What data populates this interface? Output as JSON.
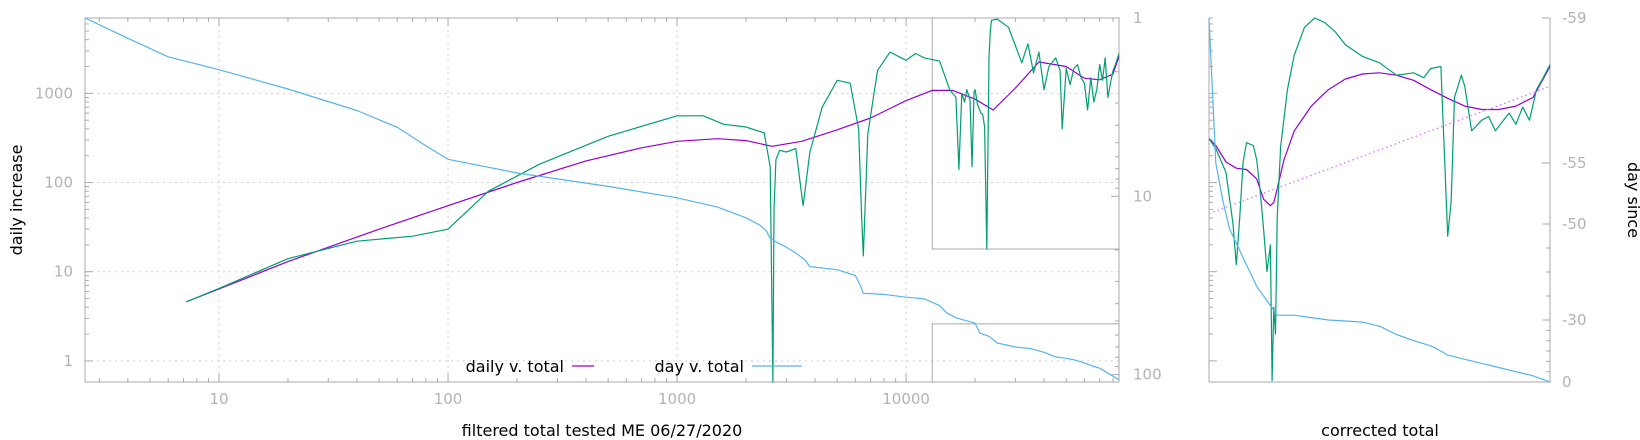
{
  "chart_data": [
    {
      "type": "line",
      "xlabel": "filtered total tested ME 06/27/2020",
      "ylabel": "daily increase",
      "y2label": "",
      "xscale": "log",
      "yscale": "log",
      "y2scale": "log-reversed",
      "xlim": [
        2.6,
        85000
      ],
      "ylim": [
        0.58,
        7000
      ],
      "y2lim": [
        1,
        110
      ],
      "x_ticks": [
        "10",
        "100",
        "1000",
        "10000"
      ],
      "y_ticks": [
        "1",
        "10",
        "100",
        "1000"
      ],
      "y2_ticks": [
        "1",
        "10",
        "100"
      ],
      "grid": true,
      "legend_position": "bottom-center",
      "colors": {
        "daily": "#9400d3",
        "raw": "#009e73",
        "day": "#56b4e9",
        "axis": "#aaaaaa",
        "text": "#b3b3b3"
      },
      "series": [
        {
          "name": "daily v. total",
          "axis": "y",
          "x": [
            7.2,
            10,
            20,
            50,
            100,
            200,
            400,
            700,
            1000,
            1500,
            2000,
            2600,
            3500,
            5000,
            7000,
            10000,
            13000,
            16000,
            20000,
            24000,
            30000,
            38000,
            50000,
            60000,
            70000,
            80000,
            85000
          ],
          "y": [
            4.6,
            6.4,
            13,
            30,
            55,
            100,
            175,
            245,
            290,
            310,
            295,
            255,
            290,
            390,
            530,
            830,
            1080,
            1080,
            860,
            650,
            1150,
            2250,
            2000,
            1480,
            1420,
            1650,
            2600
          ]
        },
        {
          "name": "",
          "axis": "y",
          "x": [
            7.2,
            10,
            20,
            40,
            70,
            100,
            150,
            250,
            500,
            1000,
            1300,
            1600,
            2000,
            2400,
            2550,
            2620,
            2650,
            2700,
            2800,
            3000,
            3300,
            3550,
            3800,
            4300,
            5000,
            5700,
            6200,
            6400,
            6500,
            6800,
            7500,
            8500,
            10000,
            11000,
            12000,
            14000,
            15500,
            16500,
            17000,
            17500,
            18000,
            18400,
            19000,
            19400,
            19800,
            20000,
            20500,
            21200,
            21600,
            22000,
            22500,
            23000,
            23300,
            23600,
            25000,
            28000,
            32000,
            34000,
            36000,
            38000,
            40000,
            42000,
            45000,
            47000,
            48000,
            50000,
            52000,
            54000,
            56000,
            58000,
            60000,
            62000,
            64000,
            66000,
            68000,
            70000,
            72000,
            74000,
            76000,
            78000,
            80000,
            82000,
            85000
          ],
          "y": [
            4.6,
            6.5,
            14,
            22,
            25,
            30,
            80,
            160,
            330,
            560,
            560,
            450,
            420,
            360,
            150,
            0.58,
            50,
            180,
            230,
            220,
            240,
            55,
            220,
            700,
            1400,
            1300,
            400,
            40,
            15,
            350,
            1800,
            2900,
            2350,
            2800,
            2500,
            2300,
            1100,
            900,
            140,
            1000,
            800,
            1100,
            850,
            150,
            1050,
            1100,
            750,
            600,
            580,
            420,
            18,
            2500,
            5000,
            6600,
            6800,
            5500,
            2200,
            3600,
            1700,
            2900,
            1100,
            2000,
            2500,
            1800,
            400,
            1900,
            1250,
            1900,
            2100,
            1500,
            1300,
            650,
            1500,
            800,
            1100,
            2100,
            1400,
            2500,
            900,
            1300,
            1800,
            2100,
            2800
          ]
        },
        {
          "name": "day v. total",
          "axis": "y2",
          "x": [
            2.6,
            4,
            6,
            10,
            20,
            40,
            60,
            80,
            100,
            200,
            500,
            1000,
            1500,
            2000,
            2300,
            2450,
            2550,
            2700,
            3000,
            3300,
            3600,
            3800,
            5000,
            6000,
            6300,
            6500,
            8000,
            10000,
            12000,
            14000,
            15000,
            16500,
            18000,
            20000,
            21000,
            23000,
            25000,
            30000,
            35000,
            40000,
            45000,
            50000,
            55000,
            60000,
            65000,
            70000,
            75000,
            80000,
            85000
          ],
          "y2": [
            1,
            1.3,
            1.65,
            1.95,
            2.5,
            3.3,
            4.1,
            5.2,
            6.2,
            7.4,
            8.8,
            10.2,
            11.5,
            13.2,
            14.5,
            15.6,
            17.2,
            18.0,
            19.3,
            20.8,
            22.6,
            24.8,
            25.8,
            27.8,
            31.5,
            35.0,
            35.5,
            36.8,
            37.6,
            41.0,
            45.0,
            48.0,
            49.5,
            51.5,
            58.5,
            61.0,
            66.5,
            70.0,
            71.5,
            75.0,
            79.5,
            81.0,
            83.0,
            86.0,
            89.5,
            92.0,
            97.0,
            102.0,
            107.0
          ]
        }
      ]
    },
    {
      "type": "line",
      "xlabel": "corrected total",
      "ylabel": "day since",
      "y2_ticks": [
        "-59",
        "-55",
        "-50",
        "-30",
        "0"
      ],
      "y2lim": [
        -59,
        0
      ],
      "grid": false,
      "colors": {
        "daily": "#9400d3",
        "raw": "#009e73",
        "day": "#56b4e9",
        "fit": "#d966ff"
      },
      "series": [
        {
          "name": "",
          "axis": "y",
          "x": [
            0.0,
            0.02,
            0.05,
            0.08,
            0.11,
            0.14,
            0.16,
            0.18,
            0.19,
            0.2,
            0.22,
            0.25,
            0.3,
            0.35,
            0.4,
            0.45,
            0.5,
            0.55,
            0.6,
            0.65,
            0.7,
            0.75,
            0.8,
            0.85,
            0.9,
            0.95,
            1.0
          ],
          "y": [
            310,
            260,
            170,
            145,
            140,
            110,
            65,
            55,
            60,
            85,
            180,
            380,
            720,
            1100,
            1450,
            1650,
            1700,
            1600,
            1400,
            1100,
            880,
            720,
            660,
            660,
            720,
            900,
            2000
          ]
        },
        {
          "name": "",
          "axis": "y",
          "x": [
            0.0,
            0.02,
            0.05,
            0.07,
            0.08,
            0.09,
            0.1,
            0.11,
            0.13,
            0.14,
            0.15,
            0.16,
            0.17,
            0.18,
            0.185,
            0.19,
            0.195,
            0.2,
            0.21,
            0.23,
            0.25,
            0.28,
            0.31,
            0.34,
            0.37,
            0.4,
            0.45,
            0.5,
            0.55,
            0.6,
            0.63,
            0.65,
            0.68,
            0.7,
            0.71,
            0.72,
            0.74,
            0.75,
            0.77,
            0.8,
            0.82,
            0.84,
            0.86,
            0.88,
            0.9,
            0.92,
            0.94,
            0.96,
            0.98,
            1.0
          ],
          "y": [
            310,
            240,
            130,
            35,
            12,
            40,
            170,
            280,
            260,
            180,
            80,
            30,
            10,
            20,
            0.6,
            4,
            2,
            40,
            250,
            1100,
            2700,
            5500,
            7000,
            6200,
            4900,
            3500,
            2600,
            2200,
            1600,
            1700,
            1500,
            1900,
            2000,
            25,
            60,
            900,
            1600,
            1200,
            380,
            500,
            550,
            380,
            480,
            600,
            450,
            700,
            500,
            1100,
            1500,
            2100
          ]
        },
        {
          "name": "",
          "axis": "y2",
          "x": [
            0.0,
            0.01,
            0.02,
            0.04,
            0.06,
            0.08,
            0.1,
            0.12,
            0.14,
            0.16,
            0.18,
            0.19,
            0.2,
            0.25,
            0.3,
            0.35,
            0.4,
            0.45,
            0.5,
            0.55,
            0.6,
            0.65,
            0.68,
            0.7,
            0.75,
            0.8,
            0.85,
            0.9,
            0.95,
            1.0
          ],
          "y2": [
            -59,
            -57,
            -55,
            -52,
            -49,
            -46,
            -43,
            -40,
            -37,
            -35,
            -33,
            -32,
            -31,
            -31,
            -30.5,
            -30,
            -29.5,
            -29,
            -27,
            -23,
            -20,
            -17.5,
            -15,
            -13,
            -11,
            -9,
            -7,
            -5,
            -3,
            0
          ]
        },
        {
          "name": "",
          "axis": "y",
          "style": "dotted",
          "x": [
            0.0,
            1.0
          ],
          "y": [
            45,
            1200
          ]
        }
      ]
    }
  ]
}
